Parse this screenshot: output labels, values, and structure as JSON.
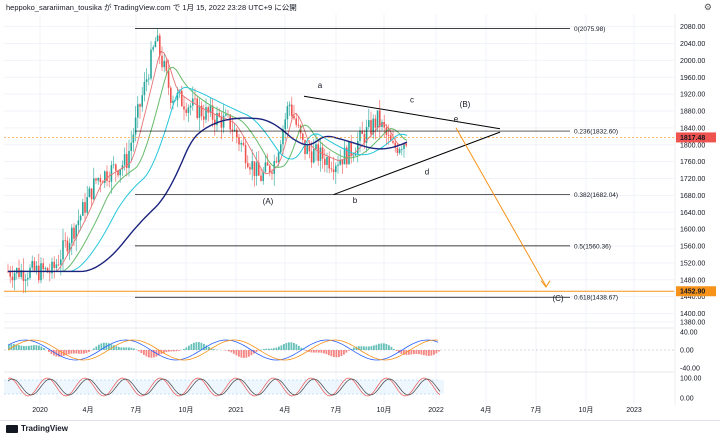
{
  "header": {
    "text": "heppoko_sarariiman_tousika が TradingView.com で 1月 15, 2022 23:28 UTC+9 に公開"
  },
  "footer": {
    "logo_text": "TradingView"
  },
  "colors": {
    "candle_up": "#26a69a",
    "candle_down": "#ef5350",
    "ma_blue_dark": "#1a237e",
    "ma_cyan": "#26c6da",
    "ma_green": "#66bb6a",
    "ma_pink": "#e57373",
    "orange": "#f7931a",
    "fib": "#000000"
  },
  "chart_data": {
    "type": "line",
    "y_range": [
      1380,
      2110
    ],
    "y_ticks": [
      1380,
      1400,
      1440,
      1480,
      1520,
      1560,
      1600,
      1640,
      1680,
      1720,
      1760,
      1800,
      1840,
      1880,
      1920,
      1960,
      2000,
      2040,
      2080,
      2120
    ],
    "x_labels": [
      "2020",
      "4月",
      "7月",
      "10月",
      "2021",
      "4月",
      "7月",
      "10月",
      "2022",
      "4月",
      "7月",
      "10月",
      "2023"
    ],
    "price_series_approx": [
      {
        "date": "2020-01",
        "value": 1500
      },
      {
        "date": "2020-03",
        "value": 1640
      },
      {
        "date": "2020-04",
        "value": 1720
      },
      {
        "date": "2020-06",
        "value": 1760
      },
      {
        "date": "2020-08",
        "value": 2050
      },
      {
        "date": "2020-09",
        "value": 1920
      },
      {
        "date": "2020-11",
        "value": 1880
      },
      {
        "date": "2021-01",
        "value": 1850
      },
      {
        "date": "2021-03",
        "value": 1720
      },
      {
        "date": "2021-04",
        "value": 1760
      },
      {
        "date": "2021-05",
        "value": 1900
      },
      {
        "date": "2021-06",
        "value": 1790
      },
      {
        "date": "2021-08",
        "value": 1760
      },
      {
        "date": "2021-09",
        "value": 1780
      },
      {
        "date": "2021-11",
        "value": 1860
      },
      {
        "date": "2021-12",
        "value": 1790
      },
      {
        "date": "2022-01",
        "value": 1817
      }
    ],
    "fib_levels": [
      {
        "label": "0(2075.98)",
        "value": 2075.98
      },
      {
        "label": "0.236(1832.60)",
        "value": 1832.6
      },
      {
        "label": "0.382(1682.04)",
        "value": 1682.04
      },
      {
        "label": "0.5(1560.36)",
        "value": 1560.36
      },
      {
        "label": "0.618(1438.67)",
        "value": 1438.67
      }
    ],
    "price_labels": [
      {
        "text": "1817.48",
        "value": 1817.48,
        "color": "#ef5350"
      },
      {
        "text": "1452.90",
        "value": 1452.9,
        "color": "#f7931a"
      }
    ],
    "wave_labels": [
      {
        "text": "a",
        "date": "2021-06",
        "value": 1935
      },
      {
        "text": "b",
        "date": "2021-08",
        "value": 1662
      },
      {
        "text": "c",
        "date": "2021-11",
        "value": 1900
      },
      {
        "text": "d",
        "date": "2021-12",
        "value": 1730
      },
      {
        "text": "e",
        "date": "2022-01",
        "value": 1855
      },
      {
        "text": "(B)",
        "date": "2022-02",
        "value": 1890
      },
      {
        "text": "(A)",
        "date": "2021-03",
        "value": 1660
      },
      {
        "text": "(C)",
        "date": "2022-04",
        "value": 1430
      }
    ],
    "indicator1": {
      "y_ticks": [
        "40.00",
        "0.00",
        "-40.00"
      ]
    },
    "indicator2": {
      "y_ticks": [
        "100.00",
        "0.00"
      ]
    }
  }
}
